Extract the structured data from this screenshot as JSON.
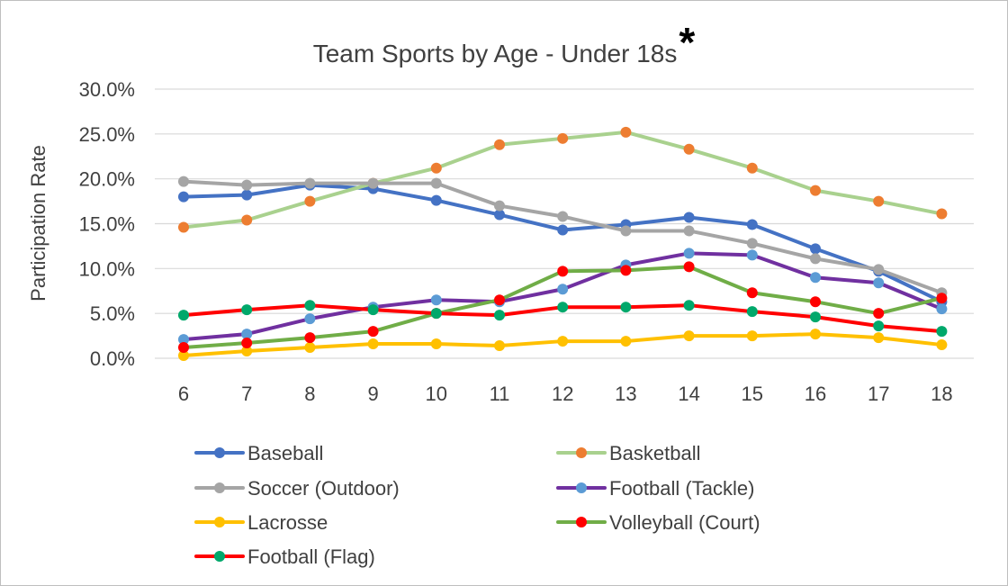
{
  "chart_data": {
    "type": "line",
    "title": "Team Sports by Age - Under 18s",
    "title_mark": "*",
    "xlabel": "",
    "ylabel": "Participation Rate",
    "x": [
      6,
      7,
      8,
      9,
      10,
      11,
      12,
      13,
      14,
      15,
      16,
      17,
      18
    ],
    "ylim": [
      0,
      30
    ],
    "yticks": [
      0,
      5,
      10,
      15,
      20,
      25,
      30
    ],
    "ytick_labels": [
      "0.0%",
      "5.0%",
      "10.0%",
      "15.0%",
      "20.0%",
      "25.0%",
      "30.0%"
    ],
    "grid": true,
    "legend": "bottom",
    "series": [
      {
        "name": "Baseball",
        "line_color": "#4472c4",
        "marker_color": "#4472c4",
        "values": [
          18.0,
          18.2,
          19.3,
          18.9,
          17.6,
          16.0,
          14.3,
          14.9,
          15.7,
          14.9,
          12.2,
          9.7,
          6.3
        ]
      },
      {
        "name": "Basketball",
        "line_color": "#a9d18e",
        "marker_color": "#ed7d31",
        "values": [
          14.6,
          15.4,
          17.5,
          19.5,
          21.2,
          23.8,
          24.5,
          25.2,
          23.3,
          21.2,
          18.7,
          17.5,
          16.1
        ]
      },
      {
        "name": "Soccer (Outdoor)",
        "line_color": "#a5a5a5",
        "marker_color": "#a5a5a5",
        "values": [
          19.7,
          19.3,
          19.5,
          19.5,
          19.5,
          17.0,
          15.8,
          14.2,
          14.2,
          12.8,
          11.1,
          9.9,
          7.3
        ]
      },
      {
        "name": "Football (Tackle)",
        "line_color": "#7030a0",
        "marker_color": "#5b9bd5",
        "values": [
          2.1,
          2.7,
          4.4,
          5.7,
          6.5,
          6.3,
          7.7,
          10.4,
          11.7,
          11.5,
          9.0,
          8.4,
          5.5
        ]
      },
      {
        "name": "Lacrosse",
        "line_color": "#ffc000",
        "marker_color": "#ffc000",
        "values": [
          0.3,
          0.8,
          1.2,
          1.6,
          1.6,
          1.4,
          1.9,
          1.9,
          2.5,
          2.5,
          2.7,
          2.3,
          1.5
        ]
      },
      {
        "name": "Volleyball (Court)",
        "line_color": "#70ad47",
        "marker_color": "#ff0000",
        "values": [
          1.2,
          1.7,
          2.3,
          3.0,
          5.0,
          6.5,
          9.7,
          9.8,
          10.2,
          7.3,
          6.3,
          5.0,
          6.7
        ]
      },
      {
        "name": "Football (Flag)",
        "line_color": "#ff0000",
        "marker_color": "#00a86b",
        "values": [
          4.8,
          5.4,
          5.9,
          5.4,
          5.0,
          4.8,
          5.7,
          5.7,
          5.9,
          5.2,
          4.6,
          3.6,
          3.0
        ]
      }
    ]
  }
}
